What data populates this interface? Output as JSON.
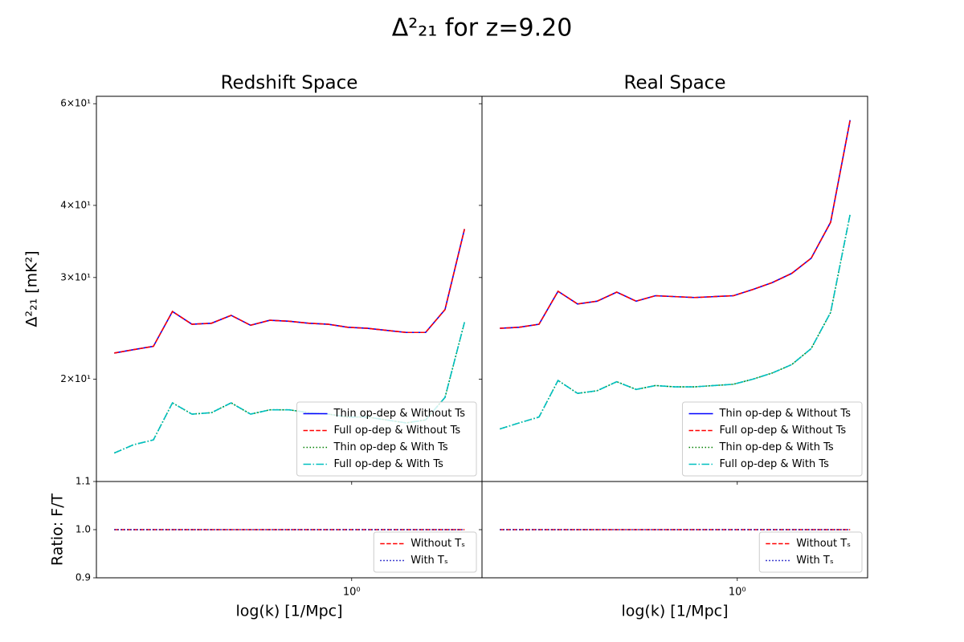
{
  "title": "Δ²₂₁ for z=9.20",
  "chart_data": [
    {
      "type": "line",
      "title": "Redshift Space",
      "ylabel": "Δ²₂₁ [mK²]",
      "log_x": true,
      "log_y": true,
      "legend": "lower right",
      "xlim": [
        0.18,
        2.4
      ],
      "xticks": [
        {
          "value": 1,
          "label": "10⁰"
        }
      ],
      "ylim": [
        13.3,
        61.8
      ],
      "yticks": [
        {
          "value": 20,
          "label": "2×10¹"
        },
        {
          "value": 30,
          "label": "3×10¹"
        },
        {
          "value": 40,
          "label": "4×10¹"
        },
        {
          "value": 60,
          "label": "6×10¹"
        }
      ],
      "x": [
        0.203,
        0.231,
        0.264,
        0.3,
        0.342,
        0.39,
        0.445,
        0.507,
        0.577,
        0.658,
        0.75,
        0.855,
        0.974,
        1.11,
        1.265,
        1.442,
        1.643,
        1.872,
        2.134
      ],
      "series": [
        {
          "name": "Thin op-dep & Without Ts",
          "color": "#0000ff",
          "linestyle": "solid",
          "values": [
            22.2,
            22.5,
            22.8,
            26.2,
            24.9,
            25.0,
            25.8,
            24.8,
            25.3,
            25.2,
            25.0,
            24.9,
            24.6,
            24.5,
            24.3,
            24.1,
            24.1,
            26.4,
            36.4
          ]
        },
        {
          "name": "Full op-dep & Without Ts",
          "color": "#ff0000",
          "linestyle": "dashed",
          "values": [
            22.2,
            22.5,
            22.8,
            26.2,
            24.9,
            25.0,
            25.8,
            24.8,
            25.3,
            25.2,
            25.0,
            24.9,
            24.6,
            24.5,
            24.3,
            24.1,
            24.1,
            26.4,
            36.4
          ]
        },
        {
          "name": "Thin op-dep & With Ts",
          "color": "#008000",
          "linestyle": "dotted",
          "values": [
            14.9,
            15.4,
            15.7,
            18.2,
            17.4,
            17.5,
            18.2,
            17.4,
            17.7,
            17.7,
            17.5,
            17.4,
            17.2,
            17.2,
            17.0,
            16.8,
            17.0,
            18.6,
            25.1
          ]
        },
        {
          "name": "Full op-dep & With Ts",
          "color": "#00bfbf",
          "linestyle": "dashdot",
          "values": [
            14.9,
            15.4,
            15.7,
            18.2,
            17.4,
            17.5,
            18.2,
            17.4,
            17.7,
            17.7,
            17.5,
            17.4,
            17.2,
            17.2,
            17.0,
            16.8,
            17.0,
            18.6,
            25.1
          ]
        }
      ]
    },
    {
      "type": "line",
      "title": "Real Space",
      "log_x": true,
      "log_y": true,
      "legend": "lower right",
      "xlim": [
        0.18,
        2.4
      ],
      "xticks": [
        {
          "value": 1,
          "label": "10⁰"
        }
      ],
      "ylim": [
        13.3,
        61.8
      ],
      "yticks": [
        20,
        30,
        40,
        60
      ],
      "x": [
        0.203,
        0.231,
        0.264,
        0.3,
        0.342,
        0.39,
        0.445,
        0.507,
        0.577,
        0.658,
        0.75,
        0.855,
        0.974,
        1.11,
        1.265,
        1.442,
        1.643,
        1.872,
        2.134
      ],
      "series": [
        {
          "name": "Thin op-dep & Without Ts",
          "color": "#0000ff",
          "linestyle": "solid",
          "values": [
            24.5,
            24.6,
            24.9,
            28.4,
            27.0,
            27.3,
            28.3,
            27.3,
            27.9,
            27.8,
            27.7,
            27.8,
            27.9,
            28.6,
            29.4,
            30.5,
            32.4,
            37.4,
            56.2
          ]
        },
        {
          "name": "Full op-dep & Without Ts",
          "color": "#ff0000",
          "linestyle": "dashed",
          "values": [
            24.5,
            24.6,
            24.9,
            28.4,
            27.0,
            27.3,
            28.3,
            27.3,
            27.9,
            27.8,
            27.7,
            27.8,
            27.9,
            28.6,
            29.4,
            30.5,
            32.4,
            37.4,
            56.2
          ]
        },
        {
          "name": "Thin op-dep & With Ts",
          "color": "#008000",
          "linestyle": "dotted",
          "values": [
            16.4,
            16.8,
            17.2,
            19.9,
            18.9,
            19.1,
            19.8,
            19.2,
            19.5,
            19.4,
            19.4,
            19.5,
            19.6,
            20.0,
            20.5,
            21.2,
            22.6,
            26.1,
            38.6
          ]
        },
        {
          "name": "Full op-dep & With Ts",
          "color": "#00bfbf",
          "linestyle": "dashdot",
          "values": [
            16.4,
            16.8,
            17.2,
            19.9,
            18.9,
            19.1,
            19.8,
            19.2,
            19.5,
            19.4,
            19.4,
            19.5,
            19.6,
            20.0,
            20.5,
            21.2,
            22.6,
            26.1,
            38.6
          ]
        }
      ]
    },
    {
      "type": "line",
      "ylabel": "Ratio: F/T",
      "xlabel": "log(k) [1/Mpc]",
      "log_x": true,
      "log_y": false,
      "legend": "lower right",
      "xlim": [
        0.18,
        2.4
      ],
      "xticks": [
        {
          "value": 1,
          "label": "10⁰"
        }
      ],
      "ylim": [
        0.9,
        1.1
      ],
      "yticks": [
        0.9,
        {
          "value": 1,
          "label": "1.0"
        },
        1.1
      ],
      "x": [
        0.203,
        0.231,
        0.264,
        0.3,
        0.342,
        0.39,
        0.445,
        0.507,
        0.577,
        0.658,
        0.75,
        0.855,
        0.974,
        1.11,
        1.265,
        1.442,
        1.643,
        1.872,
        2.134
      ],
      "series": [
        {
          "name": "Without Tₛ",
          "color": "#ff0000",
          "linestyle": "dashed",
          "values": [
            1,
            1,
            1,
            1,
            1,
            1,
            1,
            1,
            1,
            1,
            1,
            1,
            1,
            1,
            1,
            1,
            1,
            1,
            1
          ]
        },
        {
          "name": "With Tₛ",
          "color": "#0000bf",
          "linestyle": "dotted",
          "values": [
            1,
            1,
            1,
            1,
            1,
            1,
            1,
            1,
            1,
            1,
            1,
            1,
            1,
            1,
            1,
            1,
            1,
            1,
            1
          ]
        }
      ]
    },
    {
      "type": "line",
      "xlabel": "log(k) [1/Mpc]",
      "log_x": true,
      "log_y": false,
      "legend": "lower right",
      "xlim": [
        0.18,
        2.4
      ],
      "xticks": [
        {
          "value": 1,
          "label": "10⁰"
        }
      ],
      "ylim": [
        0.9,
        1.1
      ],
      "yticks": [
        0.9,
        1,
        1.1
      ],
      "x": [
        0.203,
        0.231,
        0.264,
        0.3,
        0.342,
        0.39,
        0.445,
        0.507,
        0.577,
        0.658,
        0.75,
        0.855,
        0.974,
        1.11,
        1.265,
        1.442,
        1.643,
        1.872,
        2.134
      ],
      "series": [
        {
          "name": "Without Tₛ",
          "color": "#ff0000",
          "linestyle": "dashed",
          "values": [
            1,
            1,
            1,
            1,
            1,
            1,
            1,
            1,
            1,
            1,
            1,
            1,
            1,
            1,
            1,
            1,
            1,
            1,
            1
          ]
        },
        {
          "name": "With Tₛ",
          "color": "#0000bf",
          "linestyle": "dotted",
          "values": [
            1,
            1,
            1,
            1,
            1,
            1,
            1,
            1,
            1,
            1,
            1,
            1,
            1,
            1,
            1,
            1,
            1,
            1,
            1
          ]
        }
      ]
    }
  ]
}
